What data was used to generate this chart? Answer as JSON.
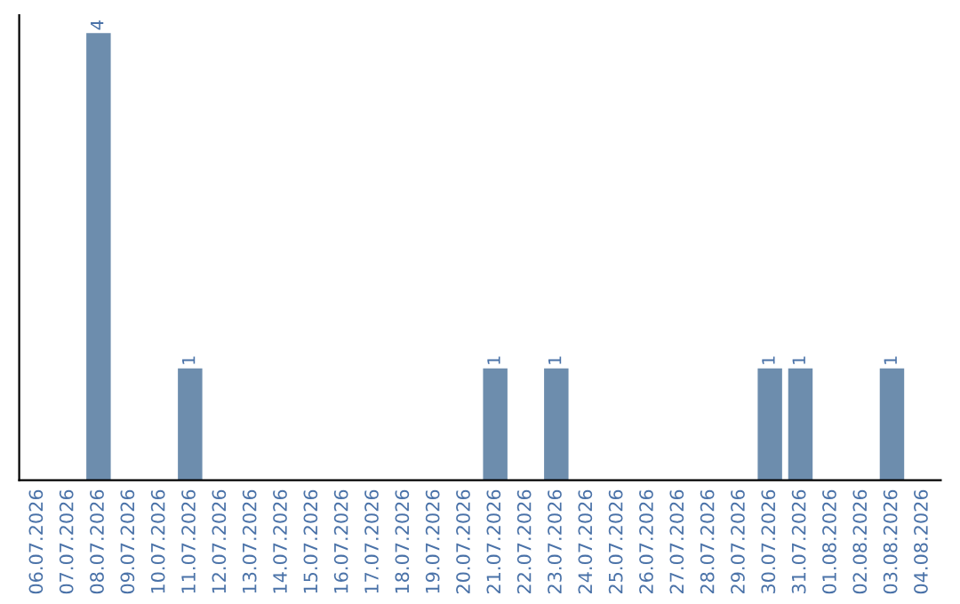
{
  "chart_data": {
    "type": "bar",
    "categories": [
      "06.07.2026",
      "07.07.2026",
      "08.07.2026",
      "09.07.2026",
      "10.07.2026",
      "11.07.2026",
      "12.07.2026",
      "13.07.2026",
      "14.07.2026",
      "15.07.2026",
      "16.07.2026",
      "17.07.2026",
      "18.07.2026",
      "19.07.2026",
      "20.07.2026",
      "21.07.2026",
      "22.07.2026",
      "23.07.2026",
      "24.07.2026",
      "25.07.2026",
      "26.07.2026",
      "27.07.2026",
      "28.07.2026",
      "29.07.2026",
      "30.07.2026",
      "31.07.2026",
      "01.08.2026",
      "02.08.2026",
      "03.08.2026",
      "04.08.2026"
    ],
    "values": [
      0,
      0,
      4,
      0,
      0,
      1,
      0,
      0,
      0,
      0,
      0,
      0,
      0,
      0,
      0,
      1,
      0,
      1,
      0,
      0,
      0,
      0,
      0,
      0,
      1,
      1,
      0,
      0,
      1,
      0
    ],
    "value_labels": [
      null,
      null,
      "4",
      null,
      null,
      "1",
      null,
      null,
      null,
      null,
      null,
      null,
      null,
      null,
      null,
      "1",
      null,
      "1",
      null,
      null,
      null,
      null,
      null,
      null,
      "1",
      "1",
      null,
      null,
      "1",
      null
    ],
    "color": "#6d8dad",
    "tick_labels": "x",
    "grid": false,
    "legend": false
  }
}
